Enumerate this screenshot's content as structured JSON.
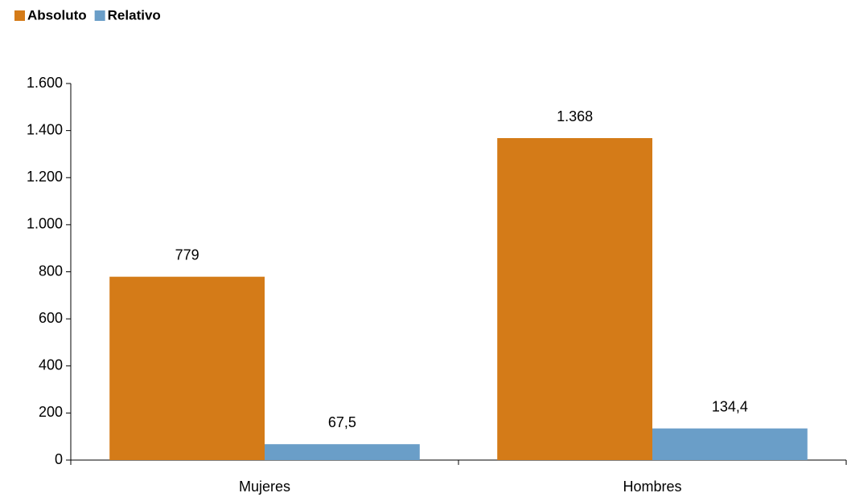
{
  "chart_data": {
    "type": "bar",
    "categories": [
      "Mujeres",
      "Hombres"
    ],
    "series": [
      {
        "name": "Absoluto",
        "color": "#d47b18",
        "values": [
          779,
          1368
        ],
        "value_labels": [
          "779",
          "1.368"
        ]
      },
      {
        "name": "Relativo",
        "color": "#6a9ec8",
        "values": [
          67.5,
          134.4
        ],
        "value_labels": [
          "67,5",
          "134,4"
        ]
      }
    ],
    "ylim": [
      0,
      1600
    ],
    "yticks": [
      0,
      200,
      400,
      600,
      800,
      {
        "value": 1000,
        "label": "1.000"
      },
      {
        "value": 1200,
        "label": "1.200"
      },
      {
        "value": 1400,
        "label": "1.400"
      },
      {
        "value": 1600,
        "label": "1.600"
      }
    ],
    "grid": false,
    "legend": "top-left"
  }
}
